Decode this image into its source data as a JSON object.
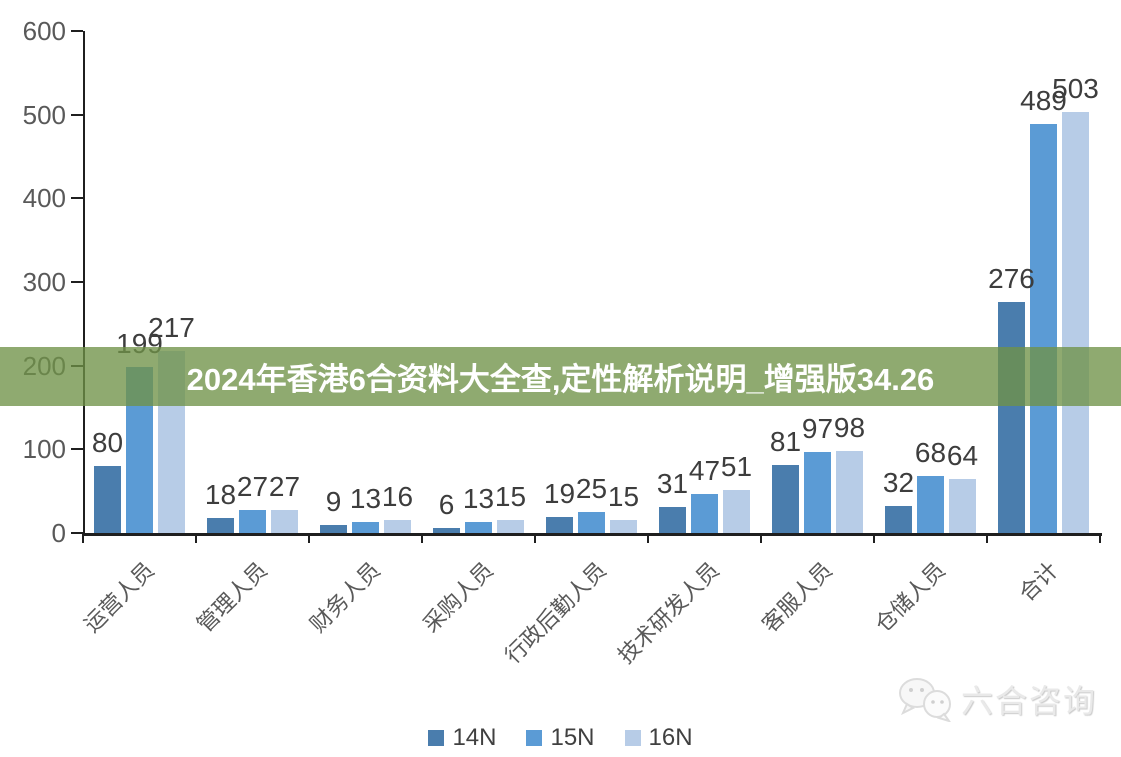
{
  "banner": {
    "text": "2024年香港6合资料大全查,定性解析说明_增强版34.26",
    "bg_color": "#709248",
    "text_color": "#ffffff"
  },
  "watermark": {
    "text": "六合咨询",
    "icon": "wechat-chat-bubbles-icon"
  },
  "chart_data": {
    "type": "bar",
    "title": "",
    "xlabel": "",
    "ylabel": "",
    "categories": [
      "运营人员",
      "管理人员",
      "财务人员",
      "采购人员",
      "行政后勤人员",
      "技术研发人员",
      "客服人员",
      "仓储人员",
      "合计"
    ],
    "series": [
      {
        "name": "14N",
        "color": "#4a7dad",
        "values": [
          80,
          18,
          9,
          6,
          19,
          31,
          81,
          32,
          276
        ]
      },
      {
        "name": "15N",
        "color": "#5b9bd5",
        "values": [
          199,
          27,
          13,
          13,
          25,
          47,
          97,
          68,
          489
        ]
      },
      {
        "name": "16N",
        "color": "#b7cce7",
        "values": [
          217,
          27,
          16,
          15,
          15,
          51,
          98,
          64,
          503
        ]
      }
    ],
    "ylim": [
      0,
      600
    ],
    "yticks": [
      0,
      100,
      200,
      300,
      400,
      500,
      600
    ],
    "grid": false,
    "data_labels": true,
    "legend_position": "bottom",
    "axis_color": "#1f1f1f",
    "tick_label_color": "#595959",
    "data_label_color": "#3d3d3d"
  }
}
